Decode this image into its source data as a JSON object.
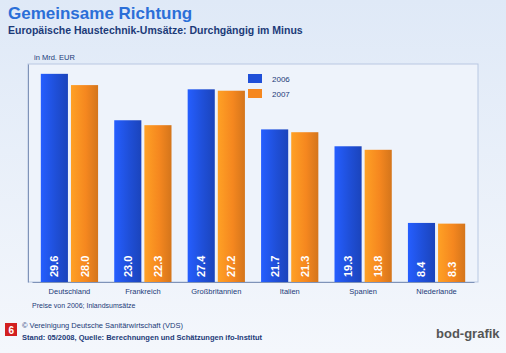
{
  "chart_data": {
    "type": "bar",
    "title": "Gemeinsame Richtung",
    "subtitle": "Europäische Haustechnik-Umsätze: Durchgängig im Minus",
    "y_label": "in Mrd. EUR",
    "categories": [
      "Deutschland",
      "Frankreich",
      "Großbritannien",
      "Italien",
      "Spanien",
      "Niederlande"
    ],
    "series": [
      {
        "name": "2006",
        "color": "#1f4fd8",
        "values": [
          29.6,
          23.0,
          27.4,
          21.7,
          19.3,
          8.4
        ],
        "value_labels": [
          "29.6",
          "23.0",
          "27.4",
          "21.7",
          "19.3",
          "8.4"
        ]
      },
      {
        "name": "2007",
        "color": "#f5871f",
        "values": [
          28.0,
          22.3,
          27.2,
          21.3,
          18.8,
          8.3
        ],
        "value_labels": [
          "28.0",
          "22.3",
          "27.2",
          "21.3",
          "18.8",
          "8.3"
        ]
      }
    ],
    "ylim": [
      0,
      31
    ],
    "grid": false,
    "legend": "top",
    "data_labels": true,
    "tick_labels": "x",
    "annotations": [
      "Preise von 2006; Inlandsumsätze",
      "© Vereinigung Deutsche Sanitärwirtschaft (VDS)",
      "Stand: 05/2008, Quelle: Berechnungen und Schätzungen ifo-Institut",
      "bod-grafik",
      "6"
    ]
  }
}
